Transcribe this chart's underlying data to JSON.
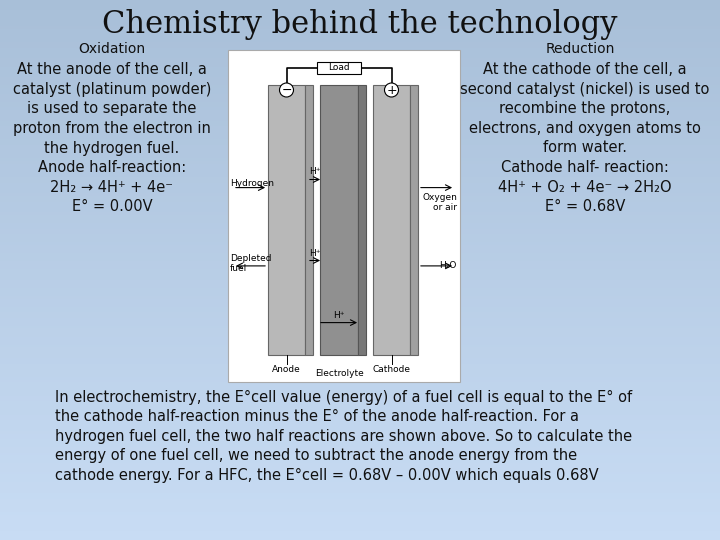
{
  "title": "Chemistry behind the technology",
  "title_fontsize": 22,
  "oxidation_label": "Oxidation",
  "reduction_label": "Reduction",
  "left_text": "At the anode of the cell, a\ncatalyst (platinum powder)\nis used to separate the\nproton from the electron in\nthe hydrogen fuel.\nAnode half-reaction:\n2H₂ → 4H⁺ + 4e⁻\nE° = 0.00V",
  "right_text": "At the cathode of the cell, a\nsecond catalyst (nickel) is used to\nrecombine the protons,\nelectrons, and oxygen atoms to\nform water.\nCathode half- reaction:\n4H⁺ + O₂ + 4e⁻ → 2H₂O\nE° = 0.68V",
  "bottom_text_line1": "In electrochemistry, the E°",
  "bottom_text_line1b": "cell",
  "bottom_text_line1c": " value (energy) of a fuel cell is equal to the E° of",
  "bottom_text_line2": "the cathode half-reaction minus the E° of the anode half-reaction. For a",
  "bottom_text_line3": "hydrogen fuel cell, the two half reactions are shown above. So to calculate the",
  "bottom_text_line4": "energy of one fuel cell, we need to subtract the anode energy from the",
  "bottom_text_line5": "cathode energy. For a HFC, the E°",
  "bottom_text_line5b": "cell",
  "bottom_text_line5c": " = 0.68V – 0.00V which equals 0.68V",
  "bg_color_top": "#a8bfd8",
  "bg_color_bottom": "#c0d4ec",
  "text_color": "#111111",
  "diagram_bg": "#ffffff",
  "gray_dark": "#8a8a8a",
  "gray_light": "#b0b0b0",
  "gray_mid": "#999999"
}
